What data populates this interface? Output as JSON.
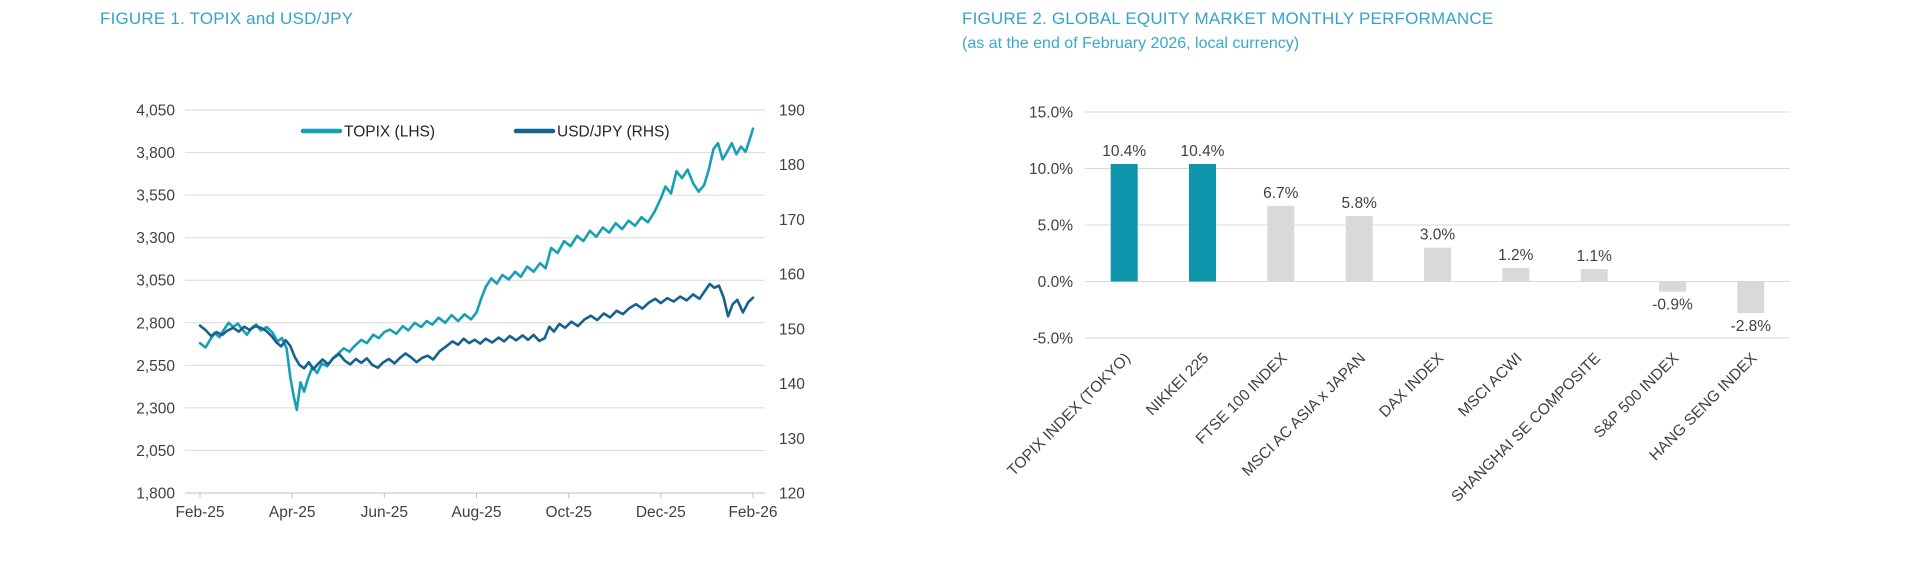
{
  "colors": {
    "title_blue": "#35a3c9",
    "topix_teal": "#189fb4",
    "usdjpy_blue": "#15618f",
    "bar_teal": "#0d96ab",
    "bar_gray": "#d9d9d9",
    "gridline": "#d9d9d9",
    "axis_line": "#bfbfbf",
    "axis_text": "#404040"
  },
  "figure1": {
    "title": "FIGURE 1. TOPIX and USD/JPY"
  },
  "figure2": {
    "title": "FIGURE 2. GLOBAL EQUITY MARKET MONTHLY PERFORMANCE",
    "subtitle": "(as at the end of February 2026, local currency)"
  },
  "chart_data": [
    {
      "type": "line",
      "title": "FIGURE 1. TOPIX and USD/JPY",
      "x_ticks": [
        "Feb-25",
        "Apr-25",
        "Jun-25",
        "Aug-25",
        "Oct-25",
        "Dec-25",
        "Feb-26"
      ],
      "x_range": [
        0,
        12
      ],
      "grid": true,
      "legend_position": "top-inside",
      "left_axis": {
        "min": 1800,
        "max": 4050,
        "step": 250,
        "labels": [
          "4,050",
          "3,800",
          "3,550",
          "3,300",
          "3,050",
          "2,800",
          "2,550",
          "2,300",
          "2,050",
          "1,800"
        ]
      },
      "right_axis": {
        "min": 120,
        "max": 190,
        "step": 10,
        "labels": [
          "190",
          "180",
          "170",
          "160",
          "150",
          "140",
          "130",
          "120"
        ]
      },
      "series": [
        {
          "name": "TOPIX (LHS)",
          "axis": "left",
          "color": "#189fb4",
          "x": [
            0,
            0.12,
            0.22,
            0.32,
            0.42,
            0.52,
            0.62,
            0.72,
            0.82,
            0.92,
            1.02,
            1.12,
            1.22,
            1.32,
            1.45,
            1.58,
            1.68,
            1.78,
            1.88,
            1.96,
            2.04,
            2.1,
            2.18,
            2.26,
            2.34,
            2.44,
            2.54,
            2.64,
            2.76,
            2.88,
            3,
            3.12,
            3.24,
            3.36,
            3.5,
            3.62,
            3.76,
            3.88,
            4,
            4.12,
            4.26,
            4.4,
            4.52,
            4.66,
            4.8,
            4.92,
            5.04,
            5.18,
            5.32,
            5.46,
            5.6,
            5.74,
            5.88,
            6,
            6.1,
            6.2,
            6.32,
            6.44,
            6.56,
            6.7,
            6.84,
            6.96,
            7.1,
            7.24,
            7.38,
            7.5,
            7.62,
            7.76,
            7.9,
            8.04,
            8.18,
            8.32,
            8.46,
            8.6,
            8.74,
            8.88,
            9.02,
            9.16,
            9.3,
            9.44,
            9.58,
            9.72,
            9.86,
            10,
            10.1,
            10.22,
            10.34,
            10.46,
            10.58,
            10.7,
            10.82,
            10.94,
            11.04,
            11.14,
            11.24,
            11.34,
            11.44,
            11.54,
            11.64,
            11.74,
            11.84,
            11.92,
            12
          ],
          "values": [
            2680,
            2655,
            2700,
            2740,
            2715,
            2760,
            2800,
            2775,
            2795,
            2760,
            2730,
            2770,
            2790,
            2755,
            2775,
            2740,
            2690,
            2710,
            2650,
            2480,
            2360,
            2289,
            2450,
            2395,
            2470,
            2540,
            2505,
            2560,
            2545,
            2590,
            2620,
            2650,
            2630,
            2665,
            2700,
            2680,
            2730,
            2710,
            2745,
            2760,
            2735,
            2780,
            2755,
            2800,
            2775,
            2810,
            2790,
            2830,
            2800,
            2845,
            2810,
            2850,
            2820,
            2860,
            2940,
            3010,
            3060,
            3030,
            3080,
            3055,
            3100,
            3070,
            3130,
            3100,
            3150,
            3120,
            3240,
            3210,
            3280,
            3250,
            3310,
            3280,
            3340,
            3305,
            3360,
            3330,
            3385,
            3350,
            3400,
            3370,
            3420,
            3390,
            3450,
            3530,
            3600,
            3560,
            3690,
            3650,
            3700,
            3620,
            3570,
            3610,
            3700,
            3820,
            3855,
            3760,
            3805,
            3855,
            3790,
            3835,
            3805,
            3870,
            3940
          ]
        },
        {
          "name": "USD/JPY (RHS)",
          "axis": "right",
          "color": "#15618f",
          "x": [
            0,
            0.12,
            0.24,
            0.36,
            0.48,
            0.6,
            0.72,
            0.84,
            0.96,
            1.08,
            1.2,
            1.32,
            1.44,
            1.56,
            1.66,
            1.76,
            1.86,
            1.96,
            2.06,
            2.16,
            2.26,
            2.36,
            2.46,
            2.56,
            2.66,
            2.78,
            2.9,
            3.02,
            3.14,
            3.26,
            3.38,
            3.5,
            3.62,
            3.74,
            3.86,
            3.98,
            4.1,
            4.22,
            4.34,
            4.46,
            4.58,
            4.7,
            4.82,
            4.94,
            5.06,
            5.2,
            5.34,
            5.48,
            5.6,
            5.72,
            5.84,
            5.96,
            6.08,
            6.2,
            6.34,
            6.48,
            6.6,
            6.72,
            6.86,
            7,
            7.12,
            7.24,
            7.36,
            7.48,
            7.58,
            7.68,
            7.8,
            7.92,
            8.06,
            8.2,
            8.34,
            8.48,
            8.62,
            8.76,
            8.9,
            9.04,
            9.18,
            9.32,
            9.46,
            9.6,
            9.74,
            9.88,
            10,
            10.14,
            10.28,
            10.42,
            10.56,
            10.7,
            10.84,
            10.96,
            11.06,
            11.16,
            11.26,
            11.36,
            11.46,
            11.56,
            11.66,
            11.78,
            11.9,
            12
          ],
          "values": [
            150.6,
            149.8,
            148.7,
            149.4,
            148.9,
            149.7,
            150.2,
            149.5,
            150.4,
            149.8,
            150.5,
            150.2,
            149.6,
            148.6,
            147.5,
            146.8,
            147.9,
            146.9,
            144.8,
            143.4,
            142.8,
            143.9,
            142.6,
            143.6,
            144.4,
            143.5,
            144.7,
            145.4,
            144.2,
            143.5,
            144.5,
            143.8,
            144.6,
            143.4,
            142.9,
            143.9,
            144.5,
            143.7,
            144.7,
            145.5,
            144.8,
            143.9,
            144.7,
            145.1,
            144.4,
            145.9,
            146.8,
            147.7,
            147.1,
            148.2,
            147.4,
            148,
            147.3,
            148.2,
            147.5,
            148.4,
            147.7,
            148.7,
            147.9,
            148.8,
            148,
            148.9,
            147.8,
            148.3,
            150.4,
            149.5,
            150.9,
            150.2,
            151.3,
            150.5,
            151.7,
            152.4,
            151.6,
            152.8,
            152.1,
            153.3,
            152.7,
            153.8,
            154.5,
            153.7,
            154.8,
            155.5,
            154.7,
            155.6,
            155,
            155.9,
            155.2,
            156.3,
            155.5,
            157,
            158.2,
            157.5,
            157.9,
            155.8,
            152.3,
            154.5,
            155.3,
            153,
            154.9,
            155.7
          ]
        }
      ]
    },
    {
      "type": "bar",
      "title": "FIGURE 2. GLOBAL EQUITY MARKET MONTHLY PERFORMANCE",
      "subtitle": "(as at the end of February 2026, local currency)",
      "categories": [
        "TOPIX INDEX (TOKYO)",
        "NIKKEI 225",
        "FTSE 100 INDEX",
        "MSCI AC ASIA x JAPAN",
        "DAX INDEX",
        "MSCI ACWI",
        "SHANGHAI SE COMPOSITE",
        "S&P 500 INDEX",
        "HANG SENG INDEX"
      ],
      "values": [
        10.4,
        10.4,
        6.7,
        5.8,
        3.0,
        1.2,
        1.1,
        -0.9,
        -2.8
      ],
      "value_labels": [
        "10.4%",
        "10.4%",
        "6.7%",
        "5.8%",
        "3.0%",
        "1.2%",
        "1.1%",
        "-0.9%",
        "-2.8%"
      ],
      "bar_colors": [
        "#0d96ab",
        "#0d96ab",
        "#d9d9d9",
        "#d9d9d9",
        "#d9d9d9",
        "#d9d9d9",
        "#d9d9d9",
        "#d9d9d9",
        "#d9d9d9"
      ],
      "ylim": [
        -5,
        15
      ],
      "y_tick_values": [
        15,
        10,
        5,
        0,
        -5
      ],
      "y_tick_labels": [
        "15.0%",
        "10.0%",
        "5.0%",
        "0.0%",
        "-5.0%"
      ],
      "grid": true,
      "legend": "none",
      "xlabel": "",
      "ylabel": ""
    }
  ]
}
